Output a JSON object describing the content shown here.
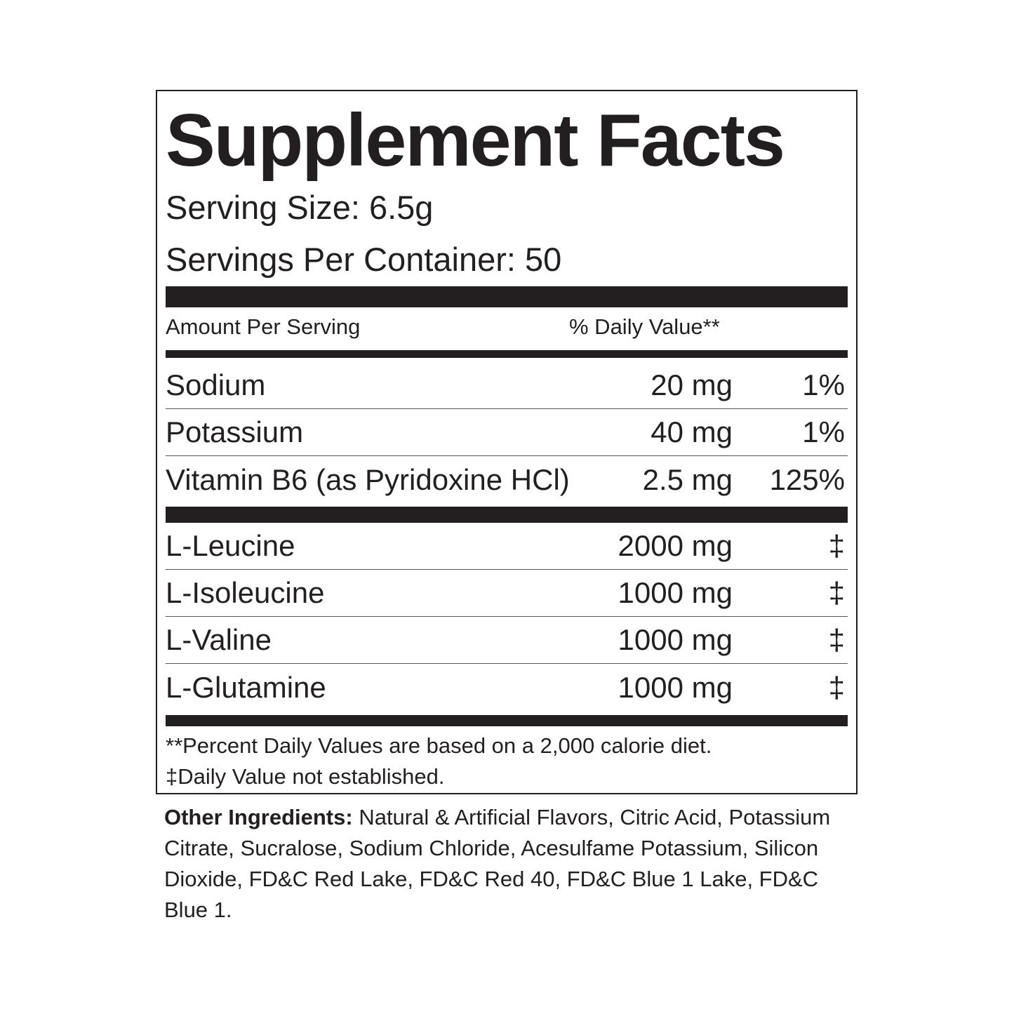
{
  "title": "Supplement Facts",
  "serving_size": "Serving Size: 6.5g",
  "servings_per_container": "Servings Per Container: 50",
  "header": {
    "amount": "Amount Per Serving",
    "daily_value": "% Daily Value**"
  },
  "nutrients": [
    {
      "name": "Sodium",
      "amount": "20 mg",
      "dv": "1%"
    },
    {
      "name": "Potassium",
      "amount": "40 mg",
      "dv": "1%"
    },
    {
      "name": "Vitamin B6 (as Pyridoxine HCl)",
      "amount": "2.5 mg",
      "dv": "125%"
    }
  ],
  "ingredients": [
    {
      "name": "L-Leucine",
      "amount": "2000 mg",
      "dv": "‡"
    },
    {
      "name": "L-Isoleucine",
      "amount": "1000 mg",
      "dv": "‡"
    },
    {
      "name": "L-Valine",
      "amount": "1000 mg",
      "dv": "‡"
    },
    {
      "name": "L-Glutamine",
      "amount": "1000 mg",
      "dv": "‡"
    }
  ],
  "footnotes": [
    "**Percent Daily Values are based on a 2,000 calorie diet.",
    "‡Daily Value not established."
  ],
  "other_ingredients": {
    "label": "Other Ingredients:",
    "text": " Natural & Artificial Flavors, Citric Acid, Potassium Citrate, Sucralose, Sodium Chloride, Acesulfame Potassium, Silicon Dioxide, FD&C Red Lake, FD&C Red 40, FD&C Blue 1 Lake, FD&C Blue 1."
  }
}
